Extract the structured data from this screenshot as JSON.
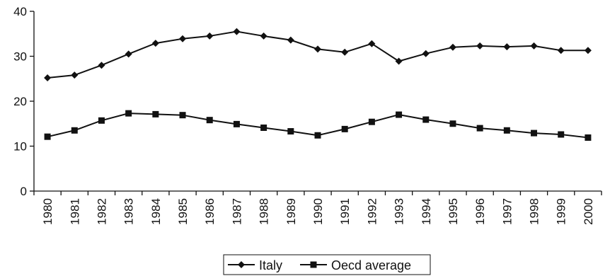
{
  "chart_data": {
    "type": "line",
    "title": "",
    "xlabel": "",
    "ylabel": "",
    "categories": [
      "1980",
      "1981",
      "1982",
      "1983",
      "1984",
      "1985",
      "1986",
      "1987",
      "1988",
      "1989",
      "1990",
      "1991",
      "1992",
      "1993",
      "1994",
      "1995",
      "1996",
      "1997",
      "1998",
      "1999",
      "2000"
    ],
    "ylim": [
      0,
      40
    ],
    "yticks": [
      "0",
      "10",
      "20",
      "30",
      "40"
    ],
    "grid": false,
    "legend_position": "bottom-center",
    "series": [
      {
        "name": "Italy",
        "marker": "diamond",
        "color": "#111111",
        "values": [
          25.2,
          25.8,
          28.0,
          30.5,
          32.9,
          33.9,
          34.5,
          35.5,
          34.5,
          33.6,
          31.6,
          30.9,
          32.8,
          28.9,
          30.6,
          32.0,
          32.3,
          32.1,
          32.3,
          31.3,
          31.3
        ]
      },
      {
        "name": "Oecd average",
        "marker": "square",
        "color": "#111111",
        "values": [
          12.1,
          13.5,
          15.7,
          17.3,
          17.1,
          16.9,
          15.8,
          14.9,
          14.1,
          13.3,
          12.4,
          13.8,
          15.4,
          17.0,
          15.9,
          15.0,
          14.0,
          13.5,
          12.9,
          12.6,
          11.9
        ]
      }
    ]
  }
}
